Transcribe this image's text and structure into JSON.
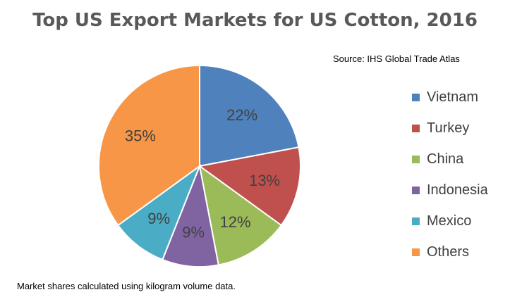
{
  "chart_data": {
    "type": "pie",
    "title": "Top US Export Markets for US Cotton, 2016",
    "source": "Source: IHS Global Trade Atlas",
    "footnote": "Market shares calculated using kilogram volume data.",
    "legend_position": "right",
    "slices": [
      {
        "label": "Vietnam",
        "value": 22,
        "display": "22%",
        "color": "#4F81BD"
      },
      {
        "label": "Turkey",
        "value": 13,
        "display": "13%",
        "color": "#C0504D"
      },
      {
        "label": "China",
        "value": 12,
        "display": "12%",
        "color": "#9BBB59"
      },
      {
        "label": "Indonesia",
        "value": 9,
        "display": "9%",
        "color": "#8064A2"
      },
      {
        "label": "Mexico",
        "value": 9,
        "display": "9%",
        "color": "#4BACC6"
      },
      {
        "label": "Others",
        "value": 35,
        "display": "35%",
        "color": "#F79646"
      }
    ]
  }
}
